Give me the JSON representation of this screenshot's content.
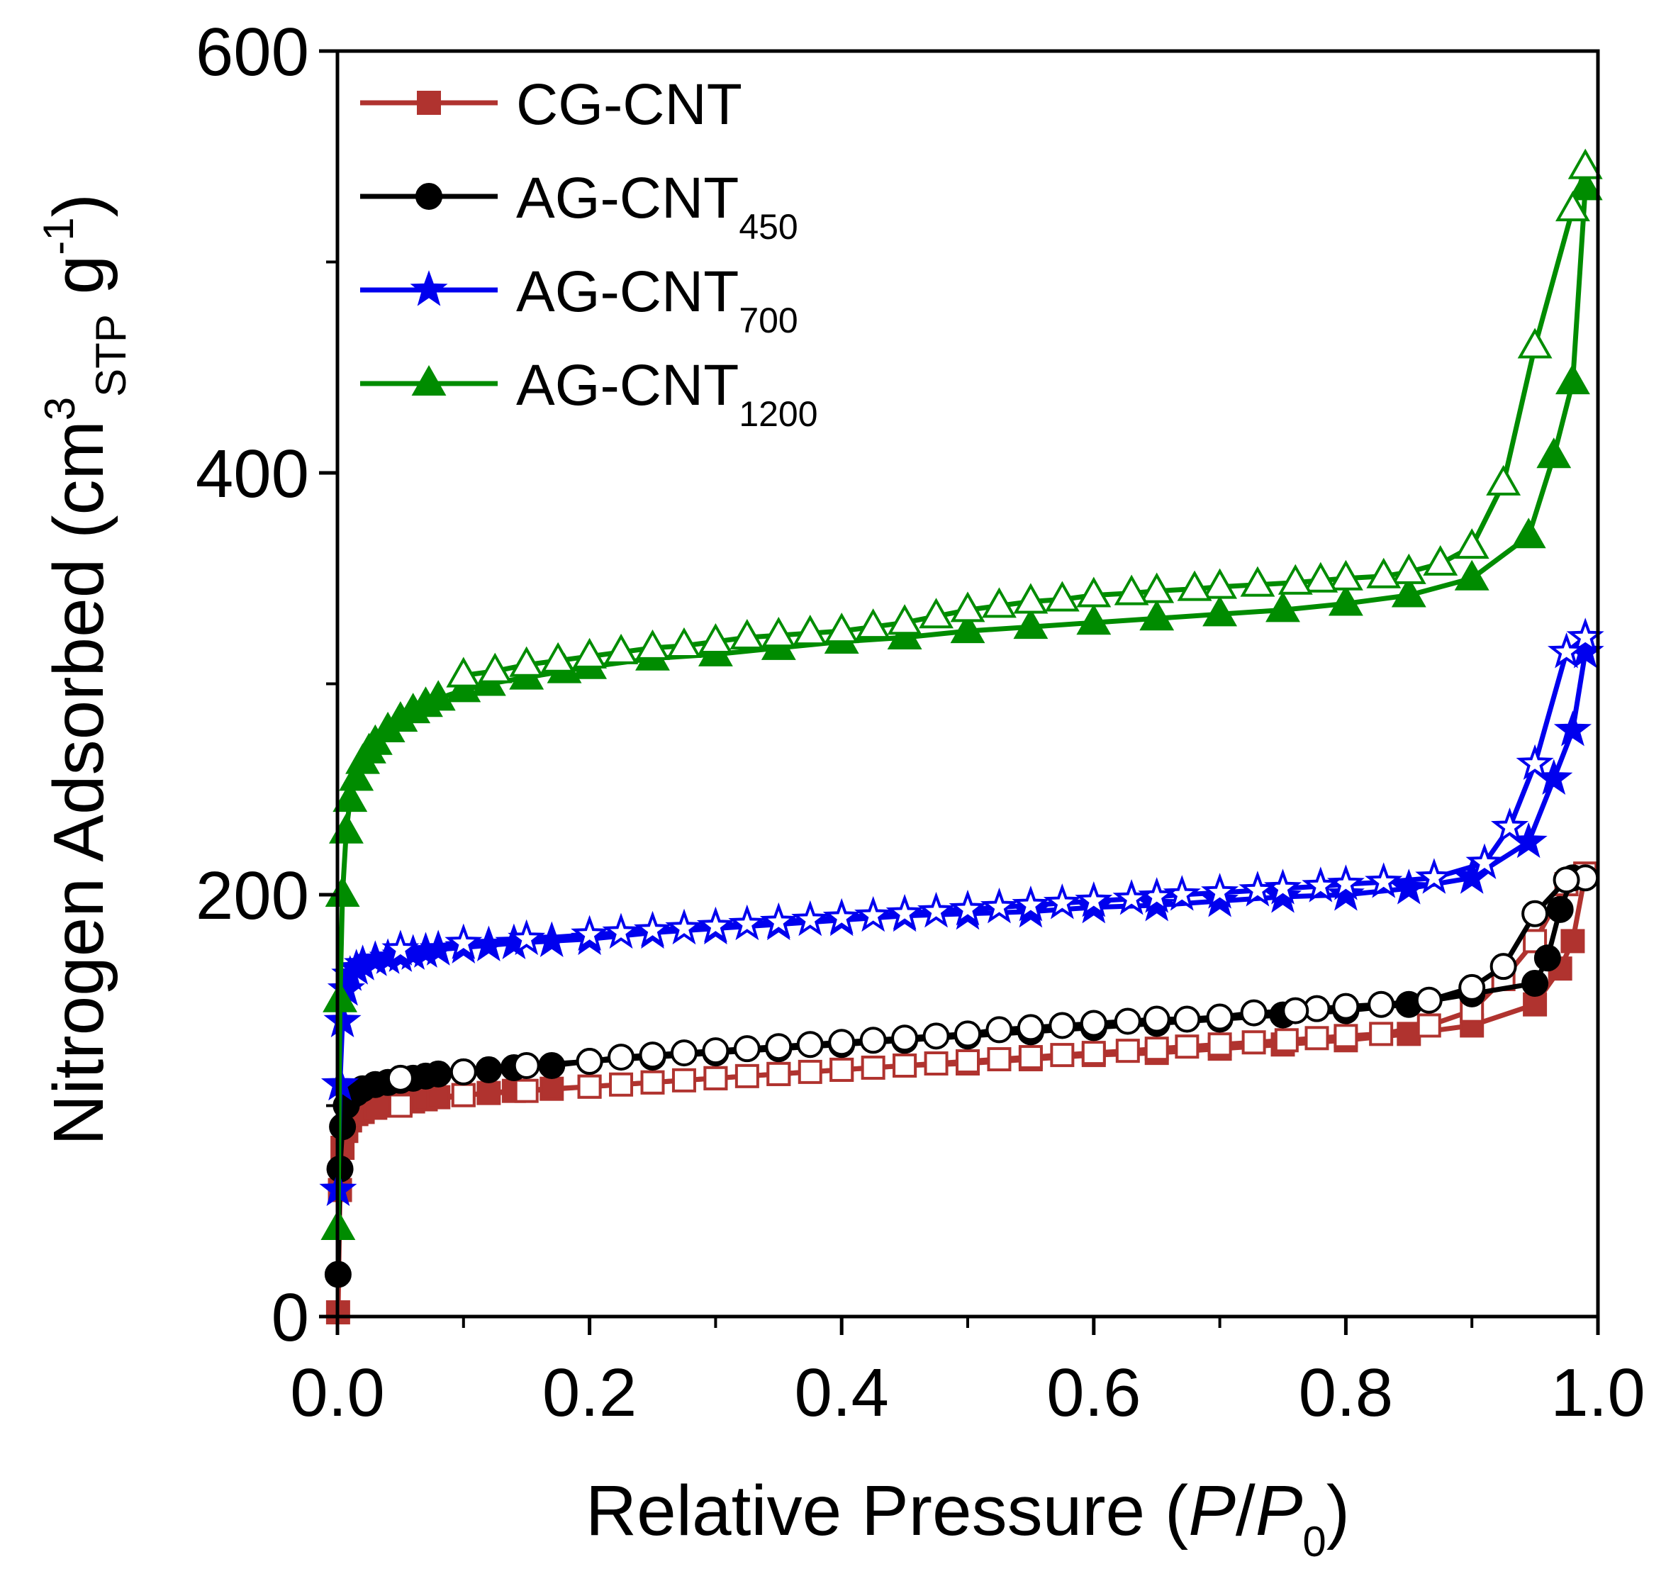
{
  "chart_data": {
    "type": "line",
    "title": "",
    "xlabel": "Relative Pressure (P/P0)",
    "xlabel_parts": {
      "main": "Relative Pressure (",
      "p": "P",
      "slash": "/",
      "p0": "P",
      "sub": "0",
      "close": ")"
    },
    "ylabel": "Nitrogen Adsorbed (cm3STP g-1)",
    "ylabel_parts": {
      "main": "Nitrogen Adsorbed (cm",
      "sup3": "3",
      "sub": "STP",
      "mid": " g",
      "supm1": "-1",
      "close": ")"
    },
    "xlim": [
      0.0,
      1.0
    ],
    "ylim": [
      0,
      600
    ],
    "xticks": [
      0.0,
      0.2,
      0.4,
      0.6,
      0.8,
      1.0
    ],
    "xtick_labels": [
      "0.0",
      "0.2",
      "0.4",
      "0.6",
      "0.8",
      "1.0"
    ],
    "yticks": [
      0,
      200,
      400,
      600
    ],
    "ytick_labels": [
      "0",
      "200",
      "400",
      "600"
    ],
    "legend_position": "top-left",
    "series": [
      {
        "name": "CG-CNT",
        "name_main": "CG-CNT",
        "name_sub": "",
        "color": "#b0332f",
        "marker": "square",
        "adsorption": {
          "x": [
            0.0005,
            0.002,
            0.004,
            0.007,
            0.01,
            0.015,
            0.02,
            0.03,
            0.04,
            0.05,
            0.06,
            0.07,
            0.08,
            0.1,
            0.12,
            0.14,
            0.17,
            0.2,
            0.25,
            0.3,
            0.35,
            0.4,
            0.45,
            0.5,
            0.55,
            0.6,
            0.65,
            0.7,
            0.75,
            0.8,
            0.85,
            0.9,
            0.95,
            0.97,
            0.98,
            0.99
          ],
          "y": [
            2,
            60,
            80,
            88,
            93,
            96,
            97,
            99,
            100,
            101,
            102,
            103,
            104,
            105,
            106,
            107,
            108,
            109,
            111,
            113,
            115,
            117,
            119,
            120,
            122,
            124,
            125,
            127,
            129,
            131,
            134,
            138,
            148,
            165,
            178,
            210
          ]
        },
        "desorption": {
          "x": [
            0.99,
            0.975,
            0.95,
            0.925,
            0.9,
            0.866,
            0.828,
            0.8,
            0.777,
            0.753,
            0.727,
            0.7,
            0.674,
            0.65,
            0.627,
            0.6,
            0.575,
            0.55,
            0.525,
            0.5,
            0.475,
            0.45,
            0.425,
            0.4,
            0.375,
            0.35,
            0.325,
            0.3,
            0.275,
            0.25,
            0.225,
            0.2,
            0.15,
            0.1,
            0.05
          ],
          "y": [
            210,
            205,
            178,
            160,
            145,
            138,
            134,
            133,
            132,
            131,
            130,
            129,
            128,
            127,
            126,
            125,
            124,
            123,
            122,
            121,
            120,
            119,
            118,
            117,
            116,
            115,
            114,
            113,
            112,
            111,
            110,
            109,
            107,
            105,
            100
          ]
        }
      },
      {
        "name": "AG-CNT450",
        "name_main": "AG-CNT",
        "name_sub": "450",
        "color": "#000000",
        "marker": "circle",
        "adsorption": {
          "x": [
            0.0005,
            0.002,
            0.004,
            0.007,
            0.01,
            0.015,
            0.02,
            0.03,
            0.04,
            0.05,
            0.06,
            0.07,
            0.08,
            0.1,
            0.12,
            0.14,
            0.17,
            0.2,
            0.25,
            0.3,
            0.35,
            0.4,
            0.45,
            0.5,
            0.55,
            0.6,
            0.65,
            0.7,
            0.75,
            0.8,
            0.85,
            0.9,
            0.95,
            0.96,
            0.97,
            0.98
          ],
          "y": [
            20,
            70,
            90,
            100,
            104,
            106,
            108,
            110,
            111,
            112,
            113,
            114,
            115,
            116,
            117,
            118,
            119,
            121,
            123,
            125,
            127,
            129,
            131,
            133,
            135,
            137,
            139,
            141,
            143,
            145,
            148,
            153,
            158,
            170,
            193,
            208
          ]
        },
        "desorption": {
          "x": [
            0.99,
            0.975,
            0.95,
            0.925,
            0.9,
            0.866,
            0.828,
            0.8,
            0.777,
            0.76,
            0.727,
            0.7,
            0.674,
            0.65,
            0.627,
            0.6,
            0.575,
            0.55,
            0.525,
            0.5,
            0.475,
            0.45,
            0.425,
            0.4,
            0.375,
            0.35,
            0.325,
            0.3,
            0.275,
            0.25,
            0.225,
            0.2,
            0.15,
            0.1,
            0.05
          ],
          "y": [
            208,
            207,
            191,
            166,
            156,
            150,
            148,
            147,
            146,
            145,
            144,
            142,
            141,
            141,
            140,
            139,
            138,
            137,
            136,
            134,
            133,
            132,
            131,
            130,
            129,
            128,
            127,
            126,
            125,
            124,
            123,
            121,
            119,
            116,
            113
          ]
        }
      },
      {
        "name": "AG-CNT700",
        "name_main": "AG-CNT",
        "name_sub": "700",
        "color": "#0000ee",
        "marker": "star",
        "adsorption": {
          "x": [
            0.0005,
            0.002,
            0.004,
            0.007,
            0.01,
            0.015,
            0.02,
            0.03,
            0.04,
            0.05,
            0.06,
            0.07,
            0.08,
            0.1,
            0.12,
            0.14,
            0.17,
            0.2,
            0.25,
            0.3,
            0.35,
            0.4,
            0.45,
            0.5,
            0.55,
            0.6,
            0.65,
            0.7,
            0.75,
            0.8,
            0.85,
            0.9,
            0.945,
            0.965,
            0.98,
            0.99
          ],
          "y": [
            60,
            110,
            140,
            155,
            162,
            165,
            167,
            169,
            170,
            171,
            172,
            173,
            174,
            175,
            176,
            177,
            178,
            179,
            182,
            184,
            186,
            188,
            190,
            191,
            192,
            194,
            195,
            197,
            199,
            200,
            203,
            208,
            225,
            255,
            278,
            315
          ]
        },
        "desorption": {
          "x": [
            0.99,
            0.975,
            0.95,
            0.93,
            0.91,
            0.87,
            0.83,
            0.8,
            0.78,
            0.75,
            0.73,
            0.7,
            0.67,
            0.65,
            0.63,
            0.6,
            0.575,
            0.55,
            0.525,
            0.5,
            0.475,
            0.45,
            0.425,
            0.4,
            0.375,
            0.35,
            0.325,
            0.3,
            0.275,
            0.25,
            0.225,
            0.2,
            0.15,
            0.1,
            0.05
          ],
          "y": [
            322,
            315,
            262,
            232,
            215,
            208,
            206,
            205,
            204,
            203,
            202,
            201,
            200,
            199,
            198,
            197,
            196,
            195,
            194,
            193,
            192,
            191,
            190,
            189,
            188,
            187,
            186,
            185,
            184,
            183,
            182,
            181,
            179,
            177,
            174
          ]
        }
      },
      {
        "name": "AG-CNT1200",
        "name_main": "AG-CNT",
        "name_sub": "1200",
        "color": "#008c00",
        "marker": "triangle",
        "adsorption": {
          "x": [
            0.0005,
            0.002,
            0.004,
            0.007,
            0.01,
            0.015,
            0.02,
            0.025,
            0.03,
            0.04,
            0.05,
            0.06,
            0.07,
            0.08,
            0.1,
            0.12,
            0.15,
            0.18,
            0.2,
            0.25,
            0.3,
            0.35,
            0.4,
            0.45,
            0.5,
            0.55,
            0.6,
            0.65,
            0.7,
            0.75,
            0.8,
            0.85,
            0.9,
            0.945,
            0.965,
            0.98,
            0.99
          ],
          "y": [
            42,
            150,
            200,
            230,
            245,
            255,
            263,
            268,
            272,
            278,
            283,
            287,
            290,
            293,
            297,
            300,
            303,
            306,
            308,
            312,
            314,
            317,
            320,
            322,
            325,
            327,
            329,
            331,
            333,
            335,
            338,
            342,
            350,
            370,
            408,
            443,
            535
          ]
        },
        "desorption": {
          "x": [
            0.99,
            0.98,
            0.95,
            0.925,
            0.9,
            0.875,
            0.85,
            0.83,
            0.8,
            0.78,
            0.76,
            0.73,
            0.7,
            0.68,
            0.65,
            0.63,
            0.6,
            0.575,
            0.55,
            0.525,
            0.5,
            0.475,
            0.45,
            0.425,
            0.4,
            0.375,
            0.35,
            0.325,
            0.3,
            0.275,
            0.25,
            0.225,
            0.2,
            0.175,
            0.15,
            0.125,
            0.1
          ],
          "y": [
            545,
            525,
            460,
            395,
            365,
            357,
            353,
            351,
            350,
            349,
            348,
            347,
            346,
            345,
            344,
            343,
            342,
            340,
            339,
            337,
            335,
            332,
            329,
            327,
            325,
            324,
            323,
            322,
            320,
            318,
            317,
            315,
            313,
            311,
            309,
            306,
            304
          ]
        }
      }
    ]
  }
}
